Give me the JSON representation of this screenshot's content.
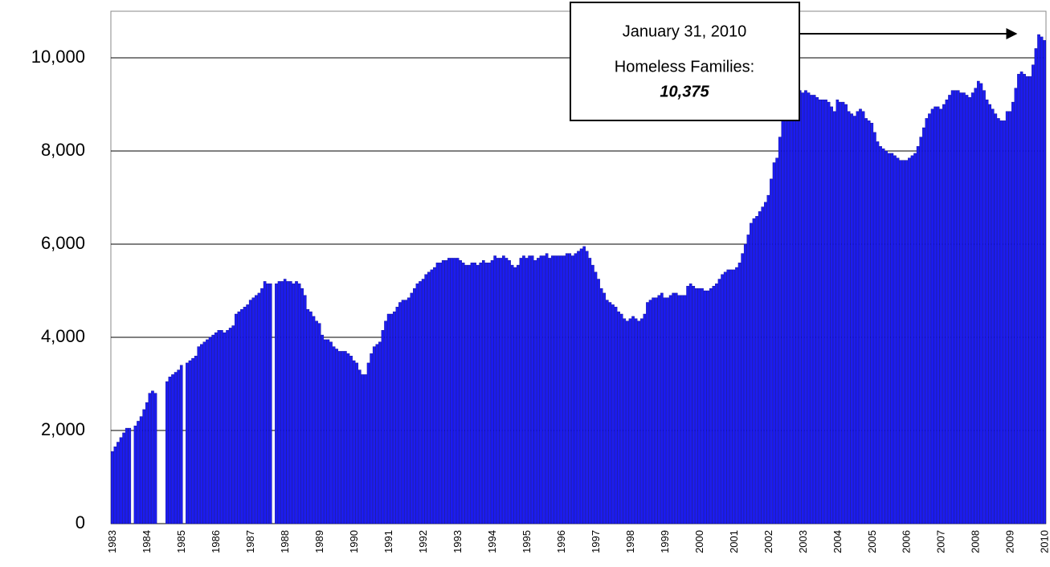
{
  "chart_data": {
    "type": "bar",
    "categories": [
      "1983",
      null,
      null,
      null,
      null,
      null,
      null,
      null,
      null,
      null,
      null,
      null,
      "1984",
      null,
      null,
      null,
      null,
      null,
      null,
      null,
      null,
      null,
      null,
      null,
      "1985",
      null,
      null,
      null,
      null,
      null,
      null,
      null,
      null,
      null,
      null,
      null,
      "1986",
      null,
      null,
      null,
      null,
      null,
      null,
      null,
      null,
      null,
      null,
      null,
      "1987",
      null,
      null,
      null,
      null,
      null,
      null,
      null,
      null,
      null,
      null,
      null,
      "1988",
      null,
      null,
      null,
      null,
      null,
      null,
      null,
      null,
      null,
      null,
      null,
      "1989",
      null,
      null,
      null,
      null,
      null,
      null,
      null,
      null,
      null,
      null,
      null,
      "1990",
      null,
      null,
      null,
      null,
      null,
      null,
      null,
      null,
      null,
      null,
      null,
      "1991",
      null,
      null,
      null,
      null,
      null,
      null,
      null,
      null,
      null,
      null,
      null,
      "1992",
      null,
      null,
      null,
      null,
      null,
      null,
      null,
      null,
      null,
      null,
      null,
      "1993",
      null,
      null,
      null,
      null,
      null,
      null,
      null,
      null,
      null,
      null,
      null,
      "1994",
      null,
      null,
      null,
      null,
      null,
      null,
      null,
      null,
      null,
      null,
      null,
      "1995",
      null,
      null,
      null,
      null,
      null,
      null,
      null,
      null,
      null,
      null,
      null,
      "1996",
      null,
      null,
      null,
      null,
      null,
      null,
      null,
      null,
      null,
      null,
      null,
      "1997",
      null,
      null,
      null,
      null,
      null,
      null,
      null,
      null,
      null,
      null,
      null,
      "1998",
      null,
      null,
      null,
      null,
      null,
      null,
      null,
      null,
      null,
      null,
      null,
      "1999",
      null,
      null,
      null,
      null,
      null,
      null,
      null,
      null,
      null,
      null,
      null,
      "2000",
      null,
      null,
      null,
      null,
      null,
      null,
      null,
      null,
      null,
      null,
      null,
      "2001",
      null,
      null,
      null,
      null,
      null,
      null,
      null,
      null,
      null,
      null,
      null,
      "2002",
      null,
      null,
      null,
      null,
      null,
      null,
      null,
      null,
      null,
      null,
      null,
      "2003",
      null,
      null,
      null,
      null,
      null,
      null,
      null,
      null,
      null,
      null,
      null,
      "2004",
      null,
      null,
      null,
      null,
      null,
      null,
      null,
      null,
      null,
      null,
      null,
      "2005",
      null,
      null,
      null,
      null,
      null,
      null,
      null,
      null,
      null,
      null,
      null,
      "2006",
      null,
      null,
      null,
      null,
      null,
      null,
      null,
      null,
      null,
      null,
      null,
      "2007",
      null,
      null,
      null,
      null,
      null,
      null,
      null,
      null,
      null,
      null,
      null,
      "2008",
      null,
      null,
      null,
      null,
      null,
      null,
      null,
      null,
      null,
      null,
      null,
      "2009",
      null,
      null,
      null,
      null,
      null,
      null,
      null,
      null,
      null,
      null,
      null,
      "2010"
    ],
    "values": [
      1550,
      1650,
      1750,
      1850,
      1950,
      2050,
      2050,
      null,
      2100,
      2200,
      2300,
      2450,
      2600,
      2800,
      2850,
      2800,
      null,
      null,
      null,
      3050,
      3150,
      3200,
      3250,
      3300,
      3400,
      null,
      3450,
      3500,
      3550,
      3600,
      3800,
      3850,
      3900,
      3950,
      4000,
      4050,
      4100,
      4150,
      4150,
      4100,
      4150,
      4200,
      4250,
      4500,
      4550,
      4600,
      4650,
      4700,
      4800,
      4850,
      4900,
      4950,
      5050,
      5200,
      5150,
      5150,
      null,
      5150,
      5200,
      5200,
      5250,
      5200,
      5200,
      5150,
      5200,
      5150,
      5050,
      4900,
      4600,
      4550,
      4450,
      4350,
      4300,
      4050,
      3950,
      3950,
      3900,
      3800,
      3750,
      3700,
      3700,
      3700,
      3650,
      3600,
      3500,
      3450,
      3300,
      3200,
      3200,
      3450,
      3650,
      3800,
      3850,
      3900,
      4150,
      4350,
      4500,
      4500,
      4550,
      4650,
      4750,
      4800,
      4800,
      4850,
      4950,
      5050,
      5150,
      5200,
      5250,
      5350,
      5400,
      5450,
      5500,
      5600,
      5600,
      5650,
      5650,
      5700,
      5700,
      5700,
      5700,
      5650,
      5600,
      5550,
      5550,
      5600,
      5600,
      5550,
      5600,
      5650,
      5600,
      5600,
      5650,
      5750,
      5700,
      5700,
      5750,
      5700,
      5650,
      5550,
      5500,
      5550,
      5700,
      5750,
      5700,
      5750,
      5750,
      5650,
      5700,
      5750,
      5750,
      5800,
      5700,
      5750,
      5750,
      5750,
      5750,
      5750,
      5800,
      5800,
      5750,
      5800,
      5850,
      5900,
      5950,
      5850,
      5700,
      5550,
      5400,
      5250,
      5050,
      4950,
      4800,
      4750,
      4700,
      4650,
      4550,
      4500,
      4400,
      4350,
      4400,
      4450,
      4400,
      4350,
      4400,
      4500,
      4750,
      4800,
      4850,
      4850,
      4900,
      4950,
      4850,
      4850,
      4900,
      4950,
      4950,
      4900,
      4900,
      4900,
      5100,
      5150,
      5100,
      5050,
      5050,
      5050,
      5000,
      5000,
      5050,
      5100,
      5150,
      5250,
      5350,
      5400,
      5450,
      5450,
      5450,
      5500,
      5600,
      5800,
      6000,
      6200,
      6450,
      6550,
      6600,
      6700,
      6800,
      6900,
      7050,
      7400,
      7750,
      7850,
      8300,
      8650,
      8800,
      9000,
      9200,
      9250,
      9250,
      9300,
      9250,
      9300,
      9250,
      9200,
      9200,
      9150,
      9100,
      9100,
      9100,
      9050,
      8950,
      8850,
      9100,
      9050,
      9050,
      9000,
      8850,
      8800,
      8750,
      8850,
      8900,
      8850,
      8700,
      8650,
      8600,
      8400,
      8200,
      8100,
      8050,
      8000,
      7950,
      7950,
      7900,
      7850,
      7800,
      7800,
      7800,
      7850,
      7900,
      7950,
      8100,
      8300,
      8500,
      8700,
      8800,
      8900,
      8950,
      8950,
      8900,
      9000,
      9100,
      9200,
      9300,
      9300,
      9300,
      9250,
      9250,
      9200,
      9150,
      9250,
      9350,
      9500,
      9450,
      9300,
      9100,
      9000,
      8900,
      8800,
      8700,
      8650,
      8650,
      8850,
      8850,
      9050,
      9350,
      9650,
      9700,
      9650,
      9600,
      9600,
      9850,
      10200,
      10500,
      10450,
      10375
    ],
    "color": "#1c1cf0",
    "ylim": [
      0,
      11000
    ],
    "yticks": [
      0,
      {
        "value": 2000,
        "label": "2,000"
      },
      {
        "value": 4000,
        "label": "4,000"
      },
      {
        "value": 6000,
        "label": "6,000"
      },
      {
        "value": 8000,
        "label": "8,000"
      },
      {
        "value": 10000,
        "label": "10,000"
      }
    ],
    "grid": true,
    "annotation": [
      "January 31, 2010",
      "Homeless Families:",
      "10,375"
    ]
  }
}
